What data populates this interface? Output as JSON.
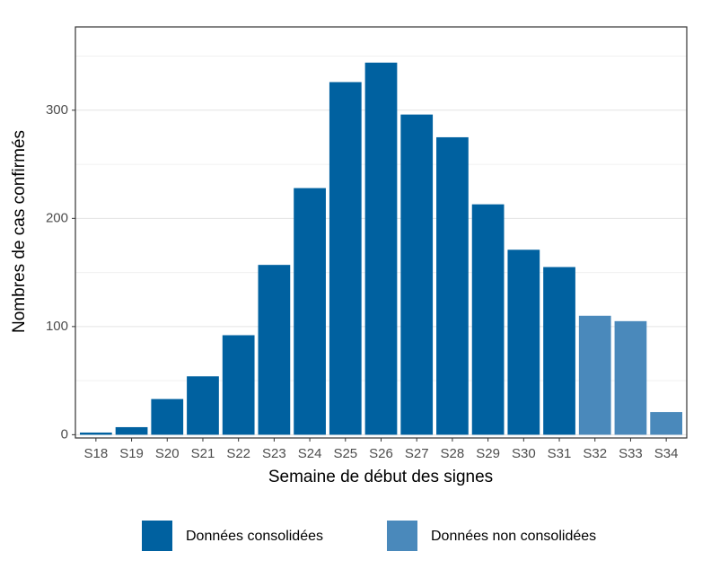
{
  "chart_data": {
    "type": "bar",
    "x_label": "Semaine de début des signes",
    "y_label": "Nombres de cas confirmés",
    "categories": [
      "S18",
      "S19",
      "S20",
      "S21",
      "S22",
      "S23",
      "S24",
      "S25",
      "S26",
      "S27",
      "S28",
      "S29",
      "S30",
      "S31",
      "S32",
      "S33",
      "S34"
    ],
    "series": [
      {
        "name": "Données consolidées",
        "color": "#0061a0",
        "values": [
          2,
          7,
          33,
          54,
          92,
          157,
          228,
          326,
          344,
          296,
          275,
          213,
          171,
          155,
          null,
          null,
          null
        ]
      },
      {
        "name": "Données non consolidées",
        "color": "#4a89bb",
        "values": [
          null,
          null,
          null,
          null,
          null,
          null,
          null,
          null,
          null,
          null,
          null,
          null,
          null,
          null,
          110,
          105,
          21
        ]
      }
    ],
    "ylim": [
      -3,
      377
    ],
    "yticks": [
      0,
      100,
      200,
      300
    ],
    "grid": true,
    "minor_grid": true,
    "legend": "bottom"
  }
}
